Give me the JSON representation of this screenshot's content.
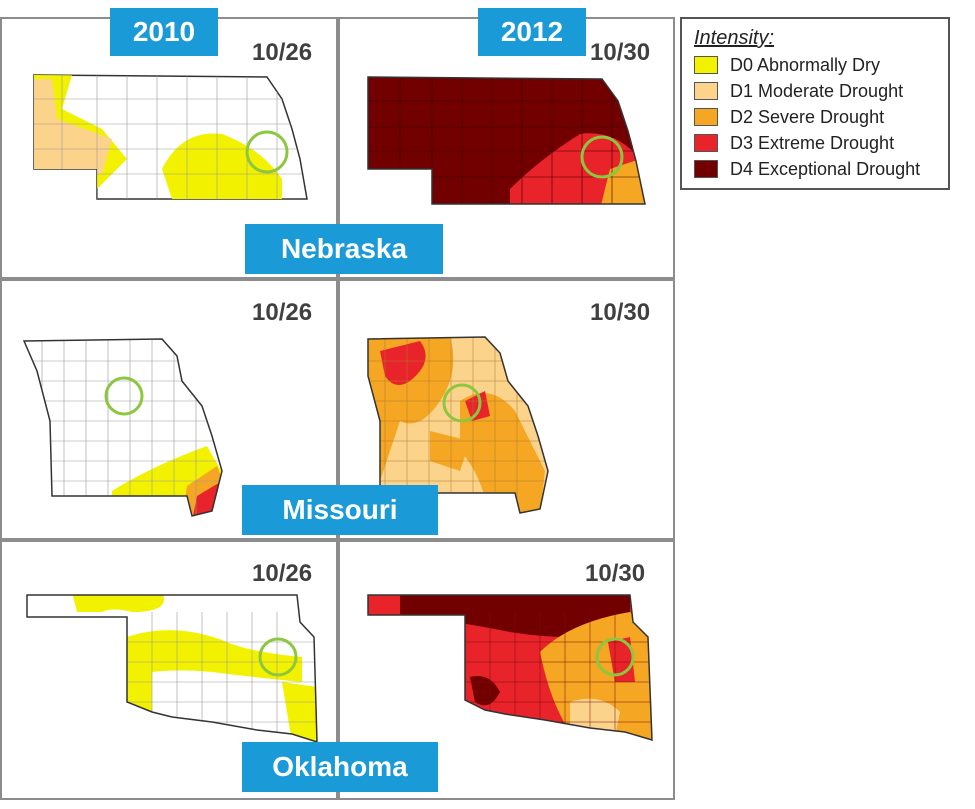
{
  "years": [
    "2010",
    "2012"
  ],
  "panels": [
    {
      "state": "Nebraska",
      "dates": [
        "10/26",
        "10/30"
      ]
    },
    {
      "state": "Missouri",
      "dates": [
        "10/26",
        "10/30"
      ]
    },
    {
      "state": "Oklahoma",
      "dates": [
        "10/26",
        "10/30"
      ]
    }
  ],
  "legend": {
    "title": "Intensity:",
    "items": [
      {
        "label": "D0 Abnormally Dry",
        "color": "#f2f200"
      },
      {
        "label": "D1 Moderate Drought",
        "color": "#fcd38b"
      },
      {
        "label": "D2 Severe Drought",
        "color": "#f5a623"
      },
      {
        "label": "D3 Extreme Drought",
        "color": "#e8232a"
      },
      {
        "label": "D4 Exceptional Drought",
        "color": "#730000"
      }
    ]
  },
  "colors": {
    "year_badge": "#1a9ad6",
    "highlight_circle": "#8dc63f",
    "border": "#8c8c8c"
  }
}
